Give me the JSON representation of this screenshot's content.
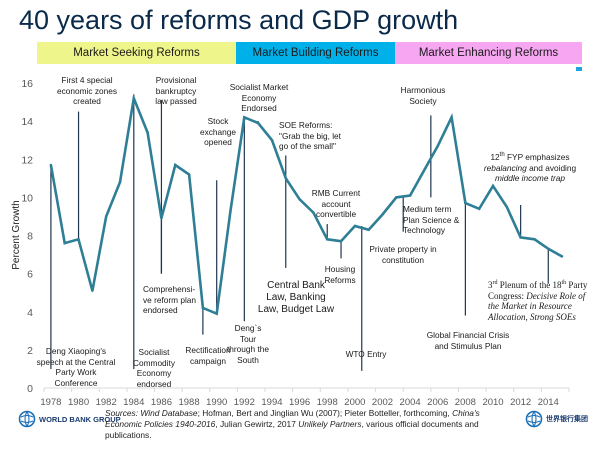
{
  "title": "40 years of reforms and GDP growth",
  "bands": [
    {
      "label": "Market Seeking Reforms",
      "color": "#eef58a"
    },
    {
      "label": "Market Building  Reforms",
      "color": "#00b0e8"
    },
    {
      "label": "Market Enhancing  Reforms",
      "color": "#f7a6f2"
    }
  ],
  "line_color": "#2e7f95",
  "annotations": {
    "deng_speech": "Deng Xiaoping's speech at the Central Party Work Conference",
    "sez": "First 4 special economic zones created",
    "socialist_commodity": "Socialist Commodity Economy endorsed",
    "bankruptcy": "Provisional bankruptcy law passed",
    "comprehensive": "Comprehensi-ve reform plan endorsed",
    "rectification": "Rectification campaign",
    "stock_exchange": "Stock exchange opened",
    "deng_tour": "Deng`s Tour through the South",
    "socialist_market": "Socialist Market Economy Endorsed",
    "soe_reforms": "SOE Reforms: \"Grab the big, let go of the small\"",
    "central_bank": "Central Bank Law, Banking Law, Budget Law",
    "rmb": "RMB Current account convertible",
    "housing": "Housing Reforms",
    "wto": "WTO Entry",
    "private_property": "Private property in constitution",
    "medium_term": "Medium term Plan Science & Technology",
    "harmonious": "Harmonious Society",
    "gfc": "Global Financial Crisis and Stimulus Plan",
    "fyp12_a": "12",
    "fyp12_sup": "th",
    "fyp12_b": " FYP emphasizes",
    "fyp12_c": "rebalancing",
    "fyp12_d": " and avoiding ",
    "fyp12_e": "middle income trap",
    "plenum_a": "3",
    "plenum_sup1": "rd",
    "plenum_b": " Plenum of the 18",
    "plenum_sup2": "th",
    "plenum_c": " Party Congress: ",
    "plenum_d": "Decisive Role of the Market in Resource Allocation, Strong SOEs"
  },
  "footer": {
    "logo_left": "WORLD BANK GROUP",
    "logo_right": "世界银行集团",
    "sources_prefix": "Sources: ",
    "sources_wind": "Wind Database",
    "sources_mid1": "; Hofman, Bert and Jinglian Wu (2007); Pieter Botteller, forthcoming, ",
    "sources_book1": "China's Economic Policies 1940-2016",
    "sources_mid2": ", Julian Gewirtz, 2017 ",
    "sources_book2": "Unlikely Partners",
    "sources_end": ",  various official documents and publications."
  },
  "chart_data": {
    "type": "line",
    "title": "40 years of reforms and GDP growth",
    "xlabel": "",
    "ylabel": "Percent Growth",
    "ylim": [
      0,
      16
    ],
    "yticks": [
      0,
      2,
      4,
      6,
      8,
      10,
      12,
      14,
      16
    ],
    "xticks": [
      "1978",
      "1980",
      "1982",
      "1984",
      "1986",
      "1988",
      "1990",
      "1992",
      "1994",
      "1996",
      "1998",
      "2000",
      "2002",
      "2004",
      "2006",
      "2008",
      "2010",
      "2012",
      "2014"
    ],
    "grid": false,
    "x": [
      1978,
      1979,
      1980,
      1981,
      1982,
      1983,
      1984,
      1985,
      1986,
      1987,
      1988,
      1989,
      1990,
      1991,
      1992,
      1993,
      1994,
      1995,
      1996,
      1997,
      1998,
      1999,
      2000,
      2001,
      2002,
      2003,
      2004,
      2005,
      2006,
      2007,
      2008,
      2009,
      2010,
      2011,
      2012,
      2013,
      2014,
      2015
    ],
    "series": [
      {
        "name": "GDP growth",
        "values": [
          11.7,
          7.6,
          7.8,
          5.1,
          9.0,
          10.8,
          15.2,
          13.4,
          8.9,
          11.7,
          11.2,
          4.2,
          3.9,
          9.3,
          14.2,
          13.9,
          13.0,
          11.0,
          9.9,
          9.2,
          7.8,
          7.7,
          8.5,
          8.3,
          9.1,
          10.0,
          10.1,
          11.4,
          12.7,
          14.2,
          9.7,
          9.4,
          10.6,
          9.5,
          7.9,
          7.8,
          7.3,
          6.9
        ]
      }
    ]
  }
}
